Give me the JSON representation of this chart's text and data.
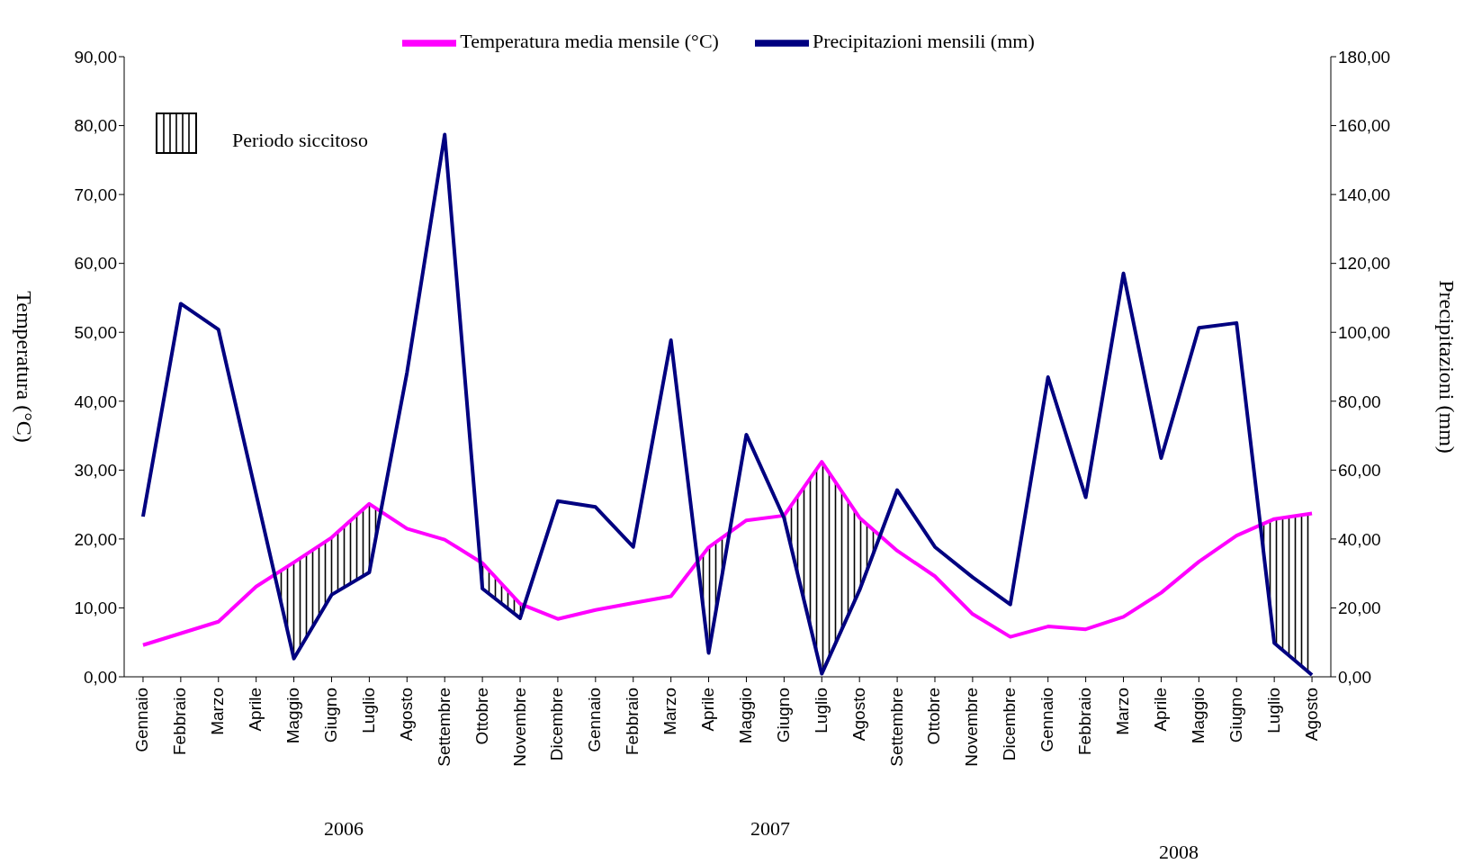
{
  "chart_data": {
    "type": "line",
    "categories": [
      "Gennaio",
      "Febbraio",
      "Marzo",
      "Aprile",
      "Maggio",
      "Giugno",
      "Luglio",
      "Agosto",
      "Settembre",
      "Ottobre",
      "Novembre",
      "Dicembre",
      "Gennaio",
      "Febbraio",
      "Marzo",
      "Aprile",
      "Maggio",
      "Giugno",
      "Luglio",
      "Agosto",
      "Settembre",
      "Ottobre",
      "Novembre",
      "Dicembre",
      "Gennaio",
      "Febbraio",
      "Marzo",
      "Aprile",
      "Maggio",
      "Giugno",
      "Luglio",
      "Agosto"
    ],
    "series": [
      {
        "name": "Temperatura media mensile (°C)",
        "color": "#ff00ff",
        "values": [
          4.6,
          6.3,
          8.0,
          13.1,
          16.6,
          20.2,
          25.1,
          21.5,
          19.9,
          16.5,
          10.6,
          8.4,
          9.7,
          10.7,
          11.7,
          18.8,
          22.7,
          23.4,
          31.2,
          23.1,
          18.3,
          14.6,
          9.1,
          5.8,
          7.3,
          6.9,
          8.7,
          12.2,
          16.7,
          20.5,
          22.9,
          23.7
        ]
      },
      {
        "name": "Precipitazioni mensili (mm)",
        "color": "#000080",
        "axis": "y2",
        "values": [
          46.5,
          108.3,
          100.8,
          53,
          5.3,
          23.8,
          30.3,
          88.3,
          157.4,
          25.6,
          17.0,
          51.0,
          49.3,
          37.7,
          97.7,
          6.9,
          70.3,
          46.1,
          0.9,
          25.1,
          54.2,
          37.7,
          28.9,
          21.0,
          87.0,
          52.1,
          117.1,
          63.5,
          101.3,
          102.7,
          9.8,
          0.5
        ]
      }
    ],
    "ylabel": "Temperatura (°C)",
    "y2label": "Precipitazioni (mm)",
    "ylim": [
      0,
      90
    ],
    "yticks": [
      {
        "value": 0,
        "label": "0,00"
      },
      {
        "value": 10,
        "label": "10,00"
      },
      {
        "value": 20,
        "label": "20,00"
      },
      {
        "value": 30,
        "label": "30,00"
      },
      {
        "value": 40,
        "label": "40,00"
      },
      {
        "value": 50,
        "label": "50,00"
      },
      {
        "value": 60,
        "label": "60,00"
      },
      {
        "value": 70,
        "label": "70,00"
      },
      {
        "value": 80,
        "label": "80,00"
      },
      {
        "value": 90,
        "label": "90,00"
      }
    ],
    "y2lim": [
      0,
      180
    ],
    "y2ticks": [
      {
        "value": 0,
        "label": "0,00"
      },
      {
        "value": 20,
        "label": "20,00"
      },
      {
        "value": 40,
        "label": "40,00"
      },
      {
        "value": 60,
        "label": "60,00"
      },
      {
        "value": 80,
        "label": "80,00"
      },
      {
        "value": 100,
        "label": "100,00"
      },
      {
        "value": 120,
        "label": "120,00"
      },
      {
        "value": 140,
        "label": "140,00"
      },
      {
        "value": 160,
        "label": "160,00"
      },
      {
        "value": 180,
        "label": "180,00"
      }
    ],
    "annotations": [
      "Periodo siccitoso",
      "2006",
      "2007",
      "2008"
    ],
    "legend": "top"
  }
}
